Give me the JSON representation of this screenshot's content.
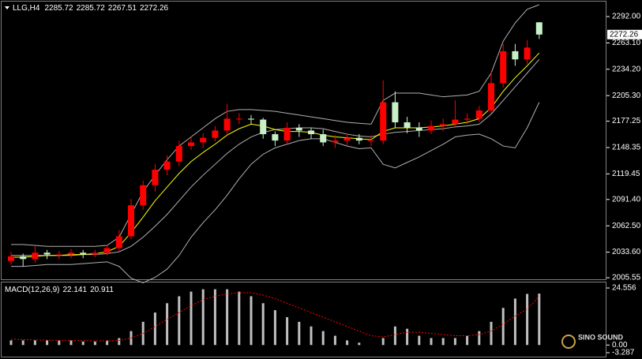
{
  "chart_data": [
    {
      "type": "candlestick",
      "title": "LLG,H4",
      "open": [
        2024,
        2029,
        2026,
        2033,
        2031,
        2031,
        2033,
        2031,
        2033,
        2038,
        2051,
        2085,
        2107,
        2124,
        2133,
        2150,
        2154,
        2159,
        2167,
        2180,
        2180,
        2179,
        2163,
        2156,
        2170,
        2167,
        2163,
        2154,
        2156,
        2159,
        2156,
        2156,
        2198,
        2176,
        2170,
        2167,
        2172,
        2174,
        2179,
        2180,
        2189,
        2219,
        2254,
        2245,
        2285.72
      ],
      "high": [
        2034,
        2032,
        2040,
        2036,
        2035,
        2037,
        2036,
        2036,
        2042,
        2058,
        2092,
        2112,
        2130,
        2140,
        2156,
        2160,
        2164,
        2172,
        2196,
        2186,
        2184,
        2181,
        2166,
        2176,
        2174,
        2170,
        2168,
        2162,
        2164,
        2163,
        2162,
        2222,
        2210,
        2182,
        2176,
        2178,
        2180,
        2200,
        2186,
        2194,
        2232,
        2262,
        2262,
        2266,
        2285.72
      ],
      "low": [
        2020,
        2018,
        2022,
        2026,
        2026,
        2027,
        2027,
        2028,
        2030,
        2034,
        2048,
        2080,
        2100,
        2118,
        2128,
        2146,
        2148,
        2155,
        2162,
        2174,
        2174,
        2158,
        2150,
        2152,
        2160,
        2158,
        2150,
        2148,
        2150,
        2152,
        2150,
        2152,
        2170,
        2164,
        2160,
        2163,
        2166,
        2170,
        2174,
        2176,
        2186,
        2214,
        2238,
        2240,
        2267.51
      ],
      "close": [
        2029,
        2026,
        2033,
        2031,
        2031,
        2033,
        2031,
        2033,
        2038,
        2051,
        2085,
        2107,
        2124,
        2133,
        2150,
        2154,
        2159,
        2167,
        2180,
        2180,
        2179,
        2163,
        2156,
        2170,
        2167,
        2163,
        2154,
        2156,
        2159,
        2156,
        2156,
        2198,
        2176,
        2170,
        2167,
        2172,
        2174,
        2179,
        2180,
        2189,
        2219,
        2254,
        2245,
        2258,
        2272.26
      ],
      "up_color": "#ff0000",
      "down_color": "#c8f0c8",
      "lines": [
        {
          "color": "#b0b0b0",
          "values": [
            2042,
            2042,
            2041,
            2040,
            2040,
            2040,
            2040,
            2040,
            2041,
            2050,
            2075,
            2100,
            2118,
            2135,
            2150,
            2160,
            2170,
            2180,
            2188,
            2190,
            2190,
            2189,
            2188,
            2186,
            2184,
            2182,
            2180,
            2178,
            2176,
            2175,
            2174,
            2200,
            2208,
            2208,
            2208,
            2206,
            2204,
            2205,
            2206,
            2210,
            2230,
            2265,
            2285,
            2300,
            2305
          ]
        },
        {
          "color": "#b0b0b0",
          "values": [
            2030,
            2030,
            2030,
            2030,
            2030,
            2030,
            2031,
            2031,
            2032,
            2034,
            2040,
            2050,
            2062,
            2075,
            2090,
            2105,
            2118,
            2130,
            2142,
            2152,
            2160,
            2165,
            2168,
            2169,
            2170,
            2170,
            2169,
            2166,
            2163,
            2161,
            2160,
            2163,
            2165,
            2166,
            2167,
            2168,
            2169,
            2171,
            2172,
            2174,
            2185,
            2200,
            2215,
            2230,
            2245
          ]
        },
        {
          "color": "#b0b0b0",
          "values": [
            2018,
            2018,
            2019,
            2020,
            2020,
            2020,
            2021,
            2022,
            2023,
            2018,
            2005,
            2000,
            2006,
            2015,
            2030,
            2050,
            2066,
            2080,
            2096,
            2114,
            2130,
            2141,
            2148,
            2152,
            2156,
            2158,
            2158,
            2154,
            2150,
            2147,
            2148,
            2130,
            2126,
            2132,
            2138,
            2145,
            2152,
            2160,
            2162,
            2163,
            2158,
            2150,
            2148,
            2170,
            2198
          ]
        },
        {
          "color": "#ffff00",
          "values": [
            2028,
            2028,
            2029,
            2030,
            2030,
            2031,
            2031,
            2032,
            2034,
            2040,
            2055,
            2072,
            2090,
            2105,
            2120,
            2133,
            2143,
            2152,
            2162,
            2169,
            2174,
            2172,
            2168,
            2166,
            2166,
            2165,
            2162,
            2160,
            2159,
            2158,
            2157,
            2166,
            2170,
            2170,
            2170,
            2171,
            2172,
            2174,
            2176,
            2180,
            2192,
            2210,
            2225,
            2238,
            2252
          ]
        }
      ],
      "ylim": [
        2002.95,
        2308.44
      ],
      "yticks": [
        {
          "value": 2292,
          "label": "2292.00"
        },
        {
          "value": 2263.1,
          "label": "2263.10"
        },
        {
          "value": 2234.2,
          "label": "2234.20"
        },
        {
          "value": 2205.3,
          "label": "2205.30"
        },
        2177.25,
        2148.35,
        2119.45,
        {
          "value": 2091.4,
          "label": "2091.40"
        },
        {
          "value": 2062.5,
          "label": "2062.50"
        },
        {
          "value": 2033.6,
          "label": "2033.60"
        },
        2005.55
      ]
    },
    {
      "type": "macd",
      "title": "MACD(12,26,9)",
      "histogram": [
        2,
        2,
        2,
        2,
        2,
        2,
        1.5,
        1.5,
        2,
        3,
        6,
        10,
        14,
        18,
        21,
        23,
        24,
        24,
        24,
        23,
        21,
        18,
        15,
        12,
        10,
        8,
        6,
        4,
        2,
        1,
        0,
        3,
        8,
        7,
        4,
        3,
        3,
        3,
        4,
        6,
        10,
        16,
        20,
        22,
        22.141
      ],
      "signal": [
        2.5,
        2.3,
        2.2,
        2.1,
        2,
        2,
        1.9,
        1.8,
        1.8,
        2,
        3,
        5,
        8,
        11,
        14,
        17,
        19.5,
        21,
        22,
        22.5,
        22.5,
        21.5,
        20,
        18,
        16,
        14,
        12,
        10,
        8,
        6,
        4,
        3.5,
        4.5,
        5.5,
        5.5,
        5,
        4.5,
        4,
        4,
        4.5,
        6,
        9,
        12.5,
        15.5,
        20.911
      ],
      "histogram_color": "#c0c0c0",
      "signal_color": "#ff0000",
      "ylim": [
        -4.99,
        26.93
      ],
      "yticks": [
        24.556,
        {
          "value": 0,
          "label": "0.00"
        },
        -3.287
      ]
    }
  ],
  "watermark": "SINO SOUND"
}
